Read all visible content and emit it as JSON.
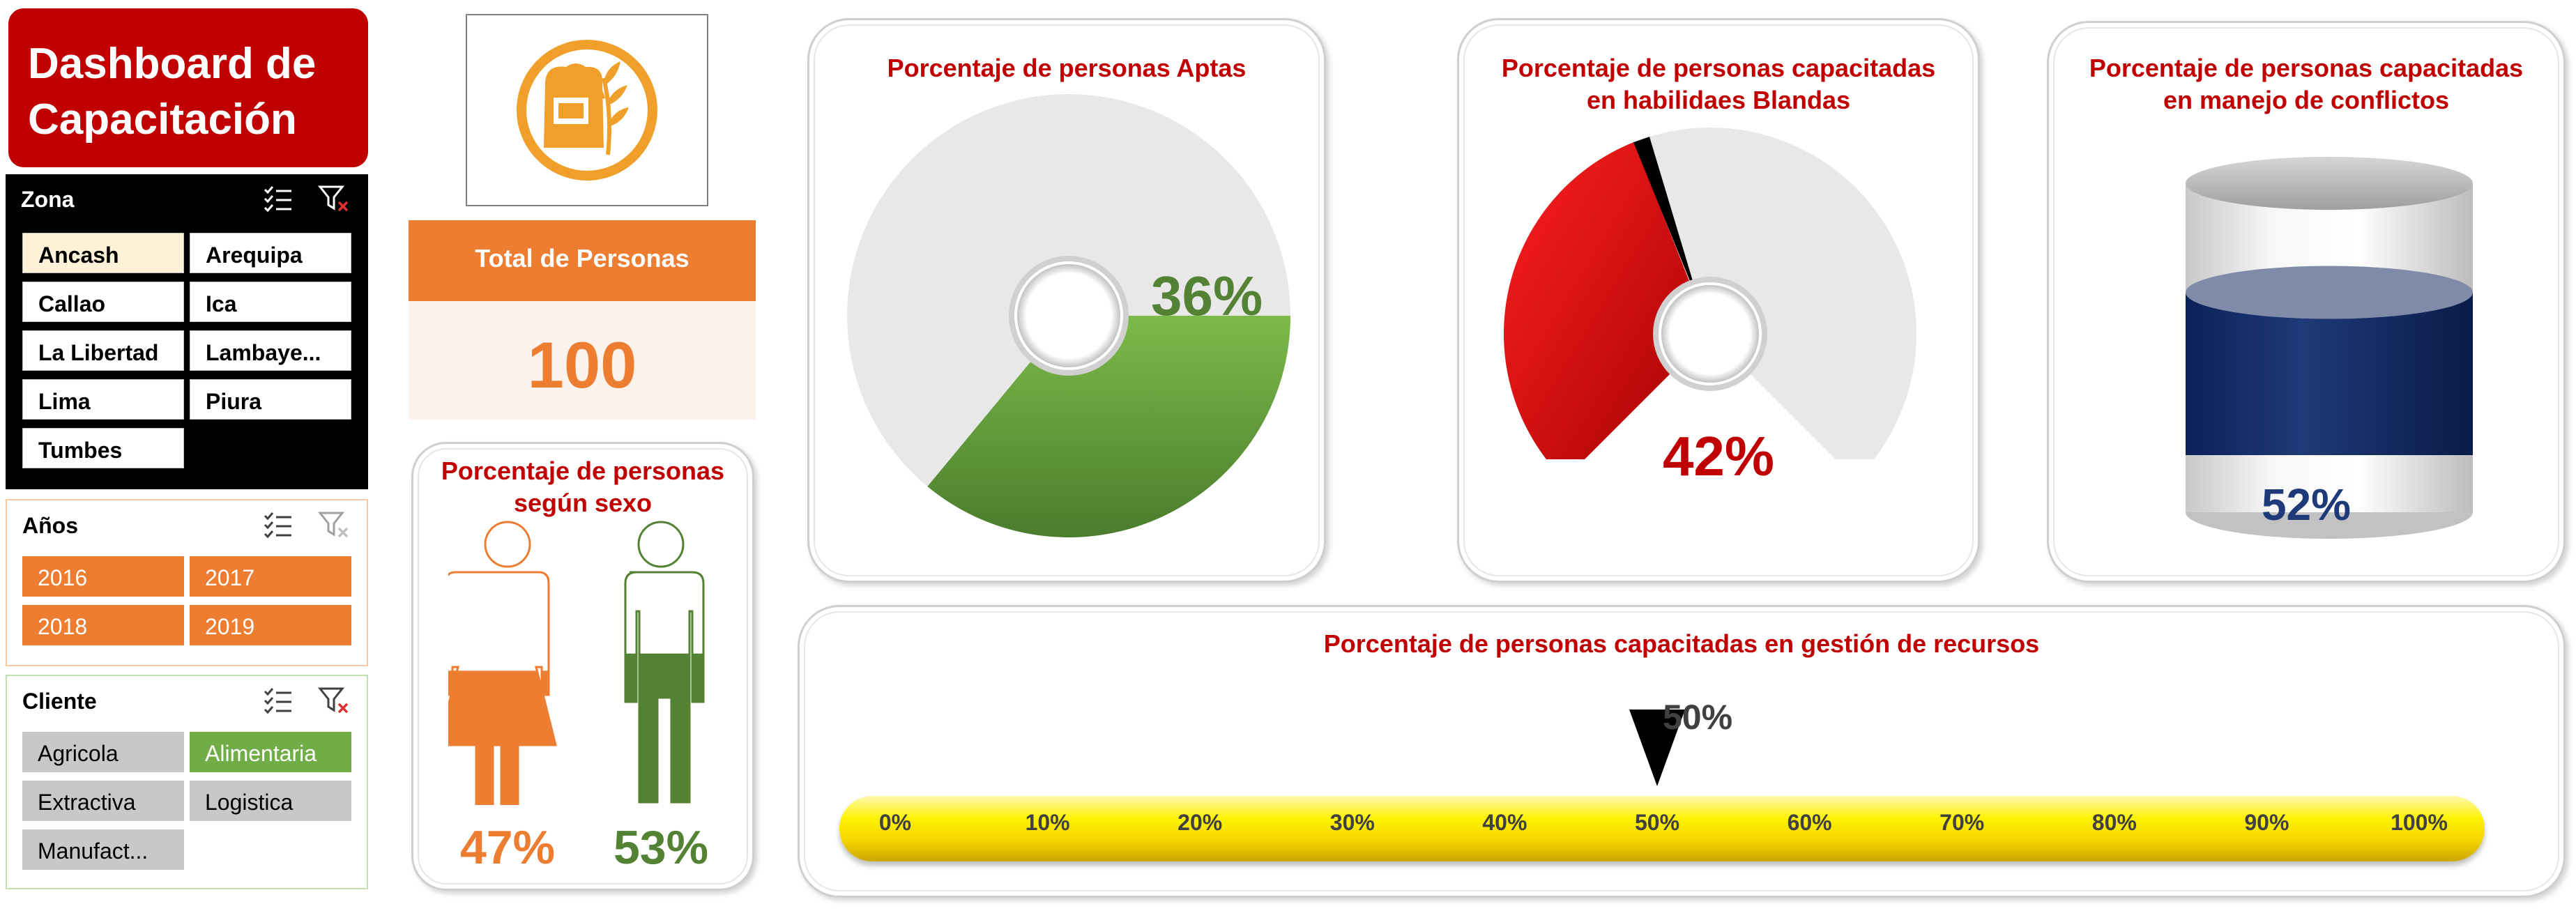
{
  "dashboard_title": "Dashboard de Capacitación",
  "slicers": {
    "zona": {
      "title": "Zona",
      "items": [
        {
          "label": "Ancash",
          "selected": true
        },
        {
          "label": "Arequipa",
          "selected": false
        },
        {
          "label": "Callao",
          "selected": false
        },
        {
          "label": "Ica",
          "selected": false
        },
        {
          "label": "La Libertad",
          "selected": false
        },
        {
          "label": "Lambaye...",
          "selected": false
        },
        {
          "label": "Lima",
          "selected": false
        },
        {
          "label": "Piura",
          "selected": false
        },
        {
          "label": "Tumbes",
          "selected": false
        }
      ]
    },
    "anios": {
      "title": "Años",
      "items": [
        {
          "label": "2016"
        },
        {
          "label": "2017"
        },
        {
          "label": "2018"
        },
        {
          "label": "2019"
        }
      ]
    },
    "cliente": {
      "title": "Cliente",
      "items": [
        {
          "label": "Agricola",
          "selected": false
        },
        {
          "label": "Alimentaria",
          "selected": true
        },
        {
          "label": "Extractiva",
          "selected": false
        },
        {
          "label": "Logistica",
          "selected": false
        },
        {
          "label": "Manufact...",
          "selected": false
        }
      ]
    },
    "icons": [
      "multi-select-icon",
      "clear-filter-icon"
    ]
  },
  "total": {
    "label": "Total de Personas",
    "value": "100"
  },
  "sexo": {
    "title_line1": "Porcentaje de personas",
    "title_line2": "según sexo",
    "female_pct": "47%",
    "male_pct": "53%",
    "female_value": 0.47,
    "male_value": 0.53
  },
  "aptas": {
    "title": "Porcentaje de personas Aptas",
    "pct_label": "36%",
    "value": 0.36
  },
  "blandas": {
    "title_line1": "Porcentaje de personas capacitadas",
    "title_line2": "en habilidaes Blandas",
    "pct_label": "42%",
    "value": 0.42
  },
  "conflictos": {
    "title_line1": "Porcentaje de personas capacitadas",
    "title_line2": "en manejo de conflictos",
    "pct_label": "52%",
    "value": 0.52
  },
  "recursos": {
    "title": "Porcentaje de personas capacitadas en gestión de recursos",
    "pct_label": "50%",
    "value": 0.5,
    "ticks": [
      "0%",
      "10%",
      "20%",
      "30%",
      "40%",
      "50%",
      "60%",
      "70%",
      "80%",
      "90%",
      "100%"
    ]
  },
  "colors": {
    "brand_red": "#c00000",
    "orange": "#ed7d31",
    "green": "#70ad47",
    "navy": "#1f3a78",
    "yellow": "#fff200"
  }
}
